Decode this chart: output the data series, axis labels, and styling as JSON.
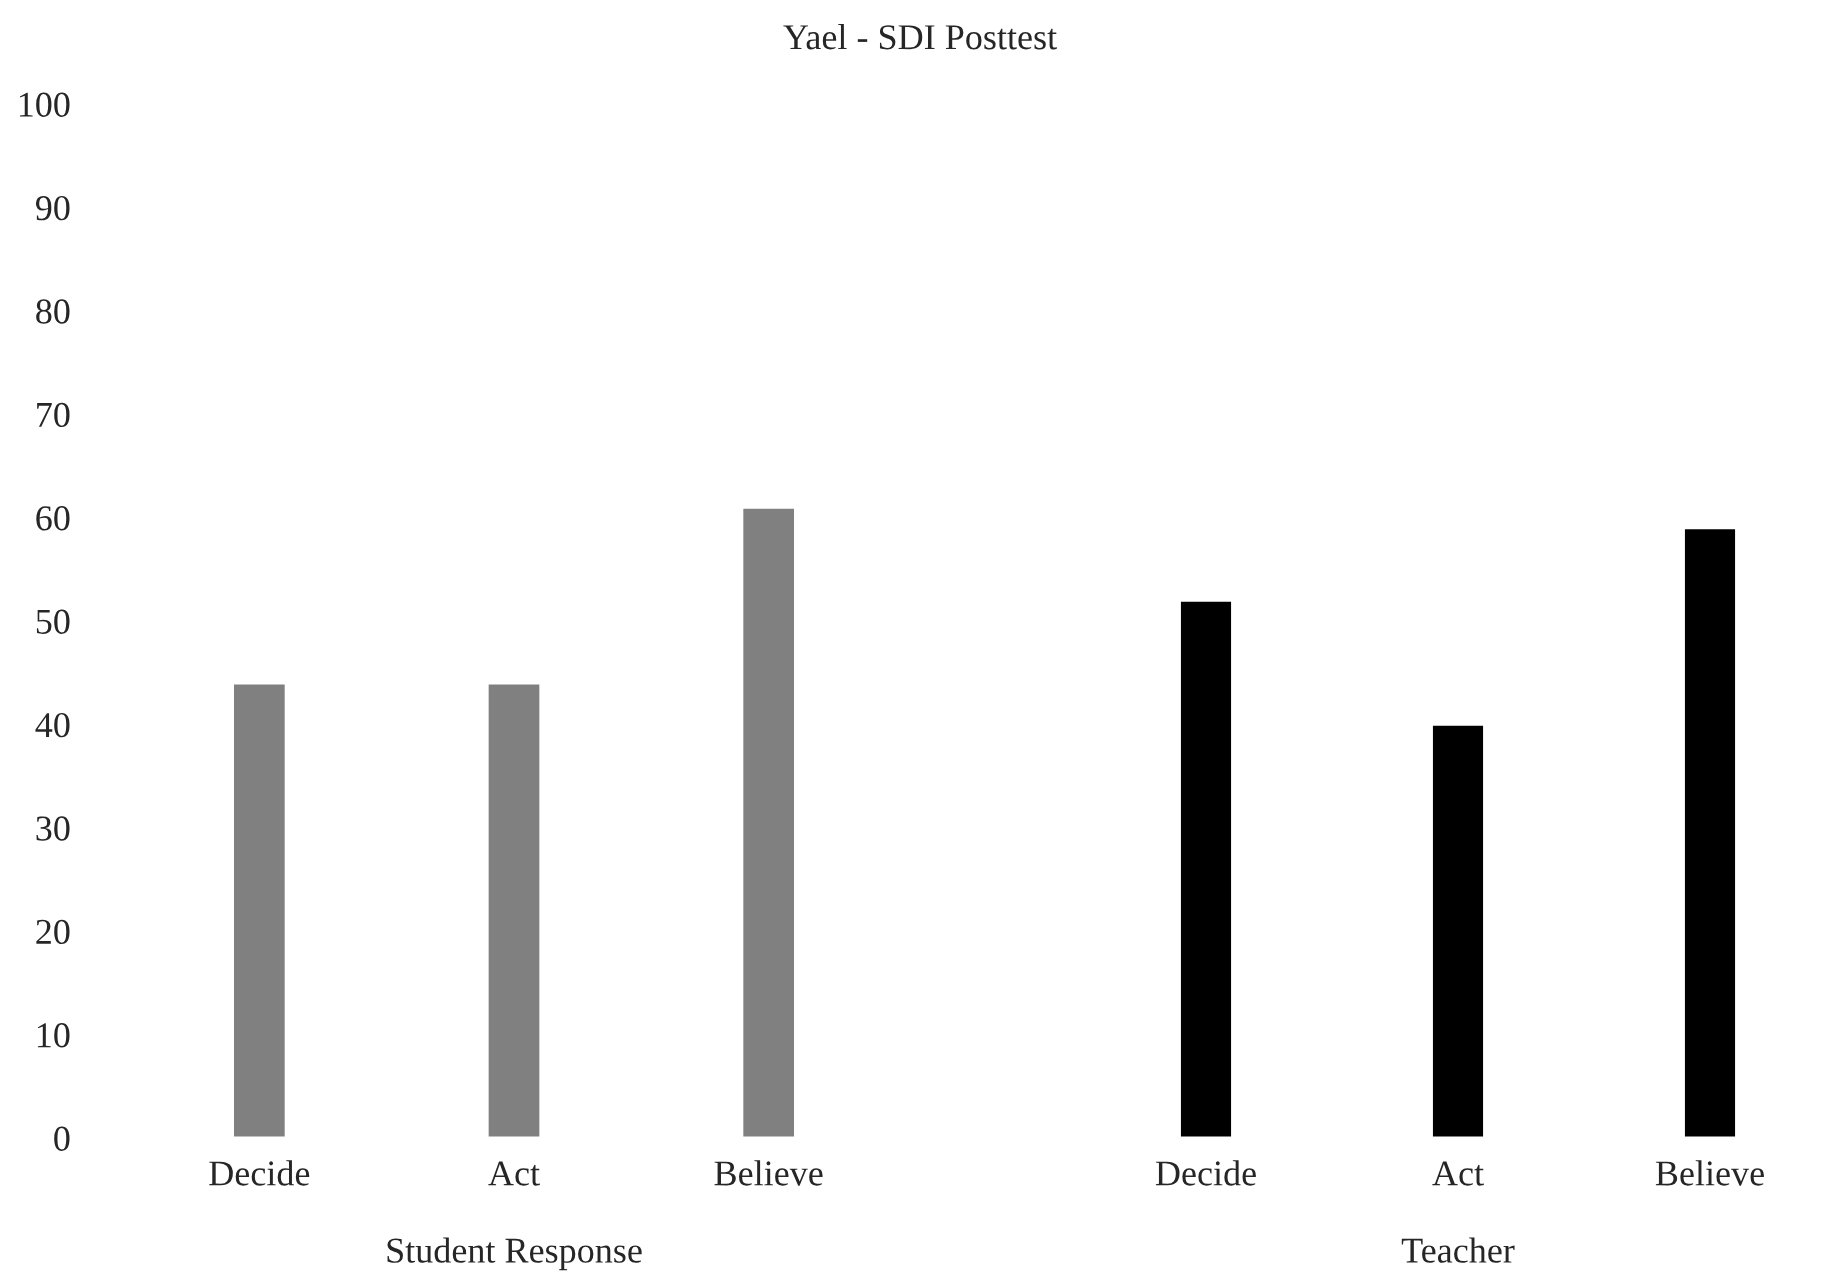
{
  "chart_data": [
    {
      "type": "bar",
      "title": "Yael - SDI Posttest",
      "xlabel": "Student Response",
      "categories": [
        "Decide",
        "Act",
        "Believe"
      ],
      "values": [
        44,
        44,
        61
      ],
      "color": "#808080",
      "ylim": [
        0,
        100
      ],
      "yticks": [
        0,
        10,
        20,
        30,
        40,
        50,
        60,
        70,
        80,
        90,
        100
      ],
      "grid": false
    },
    {
      "type": "bar",
      "xlabel": "Teacher",
      "categories": [
        "Decide",
        "Act",
        "Believe"
      ],
      "values": [
        52,
        40,
        59
      ],
      "color": "#000000",
      "ylim": [
        0,
        100
      ],
      "yticks": [
        0,
        10,
        20,
        30,
        40,
        50,
        60,
        70,
        80,
        90,
        100
      ],
      "tick_labels": "x",
      "grid": false
    }
  ]
}
